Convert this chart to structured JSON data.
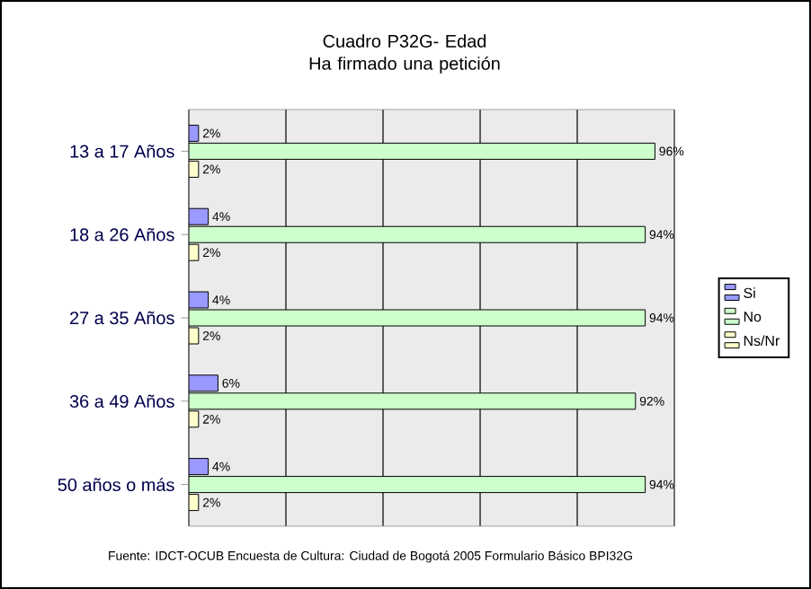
{
  "chart_data": {
    "type": "bar",
    "orientation": "horizontal",
    "title": "Cuadro P32G- Edad\nHa firmado una petición",
    "categories": [
      "13 a 17 Años",
      "18 a 26 Años",
      "27 a 35 Años",
      "36 a 49 Años",
      "50 años o más"
    ],
    "series": [
      {
        "name": "Si",
        "color": "#9999ff",
        "values": [
          2,
          4,
          4,
          6,
          4
        ],
        "value_labels": [
          "2%",
          "4%",
          "4%",
          "6%",
          "4%"
        ]
      },
      {
        "name": "No",
        "color": "#ccffcc",
        "values": [
          96,
          94,
          94,
          92,
          94
        ],
        "value_labels": [
          "96%",
          "94%",
          "94%",
          "92%",
          "94%"
        ]
      },
      {
        "name": "Ns/Nr",
        "color": "#ffffcc",
        "values": [
          2,
          2,
          2,
          2,
          2
        ],
        "value_labels": [
          "2%",
          "2%",
          "2%",
          "2%",
          "2%"
        ]
      }
    ],
    "xlim": [
      0,
      100
    ],
    "xticks": [
      {
        "value": 0,
        "label": null
      },
      {
        "value": 20,
        "label": null
      },
      {
        "value": 40,
        "label": null
      },
      {
        "value": 60,
        "label": null
      },
      {
        "value": 80,
        "label": null
      },
      {
        "value": 100,
        "label": null
      }
    ],
    "grid": "x",
    "legend": "right",
    "tick_labels": "y",
    "annotations": [
      "Fuente: IDCT-OCUB Encuesta de Cultura: Ciudad de Bogotá 2005 Formulario Básico BPI32G"
    ]
  }
}
